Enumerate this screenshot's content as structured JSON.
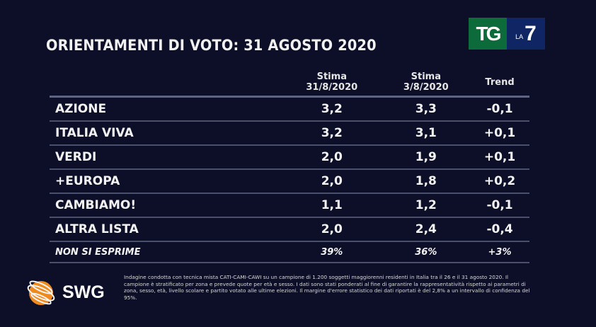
{
  "title": "ORIENTAMENTI DI VOTO: 31 AGOSTO 2020",
  "logo": {
    "tg": "TG",
    "la": "LA",
    "seven": "7"
  },
  "chart_data": {
    "type": "table",
    "title": "ORIENTAMENTI DI VOTO: 31 AGOSTO 2020",
    "columns": [
      {
        "line1": "",
        "line2": ""
      },
      {
        "line1": "Stima",
        "line2": "31/8/2020"
      },
      {
        "line1": "Stima",
        "line2": "3/8/2020"
      },
      {
        "line1": "Trend",
        "line2": ""
      }
    ],
    "rows": [
      [
        "AZIONE",
        "3,2",
        "3,3",
        "-0,1"
      ],
      [
        "ITALIA VIVA",
        "3,2",
        "3,1",
        "+0,1"
      ],
      [
        "VERDI",
        "2,0",
        "1,9",
        "+0,1"
      ],
      [
        "+EUROPA",
        "2,0",
        "1,8",
        "+0,2"
      ],
      [
        "CAMBIAMO!",
        "1,1",
        "1,2",
        "-0,1"
      ],
      [
        "ALTRA LISTA",
        "2,0",
        "2,4",
        "-0,4"
      ],
      [
        "NON SI ESPRIME",
        "39%",
        "36%",
        "+3%"
      ]
    ]
  },
  "footnote": "Indagine condotta con tecnica mista CATI-CAMI-CAWI su un campione di 1.200 soggetti maggiorenni residenti in Italia tra il 26 e il 31 agosto 2020. Il campione è stratificato per zona e prevede quote per età e sesso. I dati sono stati ponderati al fine di garantire la rappresentatività rispetto ai parametri di zona, sesso, età, livello scolare e partito votato alle ultime elezioni. Il margine d'errore statistico dei dati riportati è del 2,8% a un intervallo di confidenza del 95%.",
  "brand": "SWG",
  "colors": {
    "background": "#0c0f27",
    "tg_green": "#0d6a3a",
    "la7_blue": "#102563",
    "globe": "#f08a1c"
  }
}
